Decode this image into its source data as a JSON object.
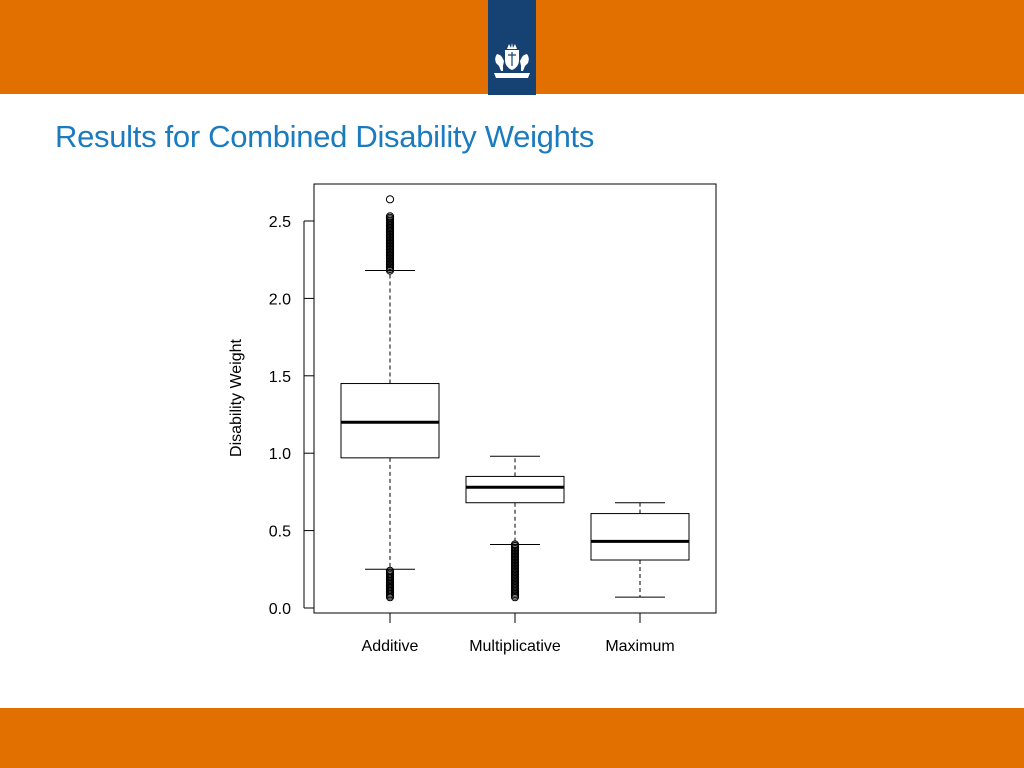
{
  "slide": {
    "title": "Results for Combined Disability Weights"
  },
  "colors": {
    "band": "#e17000",
    "logo_bg": "#154273",
    "title": "#1a7bbf",
    "logo_fg": "#ffffff"
  },
  "logo": {
    "icon": "coat-of-arms-icon"
  },
  "chart_data": {
    "type": "boxplot",
    "title": "",
    "xlabel": "",
    "ylabel": "Disability Weight",
    "ylim": [
      0,
      2.6
    ],
    "yticks": [
      0.0,
      0.5,
      1.0,
      1.5,
      2.0,
      2.5
    ],
    "ytick_labels": [
      "0.0",
      "0.5",
      "1.0",
      "1.5",
      "2.0",
      "2.5"
    ],
    "grid": false,
    "categories": [
      "Additive",
      "Multiplicative",
      "Maximum"
    ],
    "boxes": [
      {
        "name": "Additive",
        "whisker_low": 0.25,
        "q1": 0.97,
        "median": 1.2,
        "q3": 1.45,
        "whisker_high": 2.18,
        "outliers_high_range": [
          2.18,
          2.53
        ],
        "outliers_high_extra": [
          2.64
        ],
        "outliers_low_range": [
          0.07,
          0.24
        ]
      },
      {
        "name": "Multiplicative",
        "whisker_low": 0.41,
        "q1": 0.68,
        "median": 0.78,
        "q3": 0.85,
        "whisker_high": 0.98,
        "outliers_high_range": null,
        "outliers_high_extra": [],
        "outliers_low_range": [
          0.07,
          0.41
        ]
      },
      {
        "name": "Maximum",
        "whisker_low": 0.07,
        "q1": 0.31,
        "median": 0.43,
        "q3": 0.61,
        "whisker_high": 0.68,
        "outliers_high_range": null,
        "outliers_high_extra": [],
        "outliers_low_range": null
      }
    ]
  }
}
